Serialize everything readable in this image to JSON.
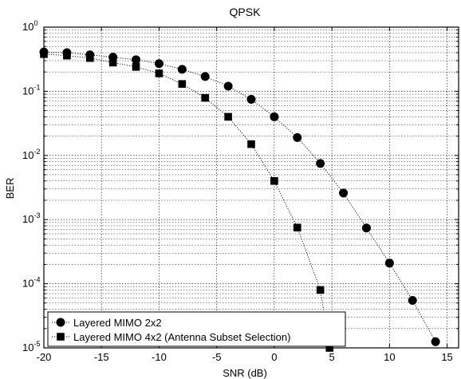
{
  "chart_data": {
    "type": "line",
    "title": "QPSK",
    "xlabel": "SNR (dB)",
    "ylabel": "BER",
    "xlim": [
      -20,
      16
    ],
    "ylim": [
      1e-05,
      1
    ],
    "yscale": "log",
    "grid": true,
    "legend_position": "bottom-left",
    "x_ticks": [
      -20,
      -15,
      -10,
      -5,
      0,
      5,
      10,
      15
    ],
    "x_tick_labels": [
      "-20",
      "-15",
      "-10",
      "-5",
      "0",
      "5",
      "10",
      "15"
    ],
    "y_ticks": [
      1e-05,
      0.0001,
      0.001,
      0.01,
      0.1,
      1
    ],
    "y_tick_labels": [
      {
        "base": "10",
        "exp": "-5"
      },
      {
        "base": "10",
        "exp": "-4"
      },
      {
        "base": "10",
        "exp": "-3"
      },
      {
        "base": "10",
        "exp": "-2"
      },
      {
        "base": "10",
        "exp": "-1"
      },
      {
        "base": "10",
        "exp": "0"
      }
    ],
    "series": [
      {
        "name": "Layered MIMO 2x2",
        "marker": "circle",
        "color": "#000000",
        "x": [
          -20,
          -18,
          -16,
          -14,
          -12,
          -10,
          -8,
          -6,
          -4,
          -2,
          0,
          2,
          4,
          6,
          8,
          10,
          12,
          14
        ],
        "y": [
          0.41,
          0.4,
          0.37,
          0.34,
          0.31,
          0.27,
          0.22,
          0.17,
          0.12,
          0.075,
          0.04,
          0.019,
          0.0075,
          0.0026,
          0.00074,
          0.00021,
          5.5e-05,
          1.25e-05
        ]
      },
      {
        "name": "Layered MIMO 4x2 (Antenna Subset Selection)",
        "marker": "square",
        "color": "#000000",
        "x": [
          -20,
          -18,
          -16,
          -14,
          -12,
          -10,
          -8,
          -6,
          -4,
          -2,
          0,
          2,
          4,
          4.8
        ],
        "y": [
          0.38,
          0.36,
          0.33,
          0.28,
          0.24,
          0.19,
          0.13,
          0.079,
          0.04,
          0.015,
          0.004,
          0.00075,
          8e-05,
          1e-05
        ]
      }
    ]
  }
}
